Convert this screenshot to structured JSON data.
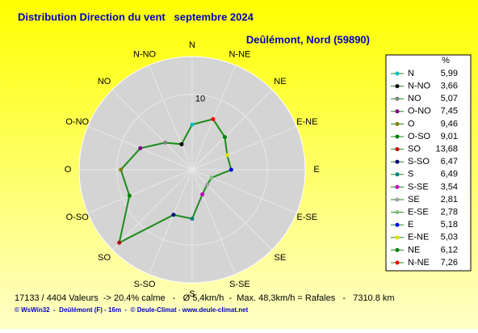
{
  "chart_data": {
    "type": "radar",
    "title": "Distribution Direction du vent   septembre 2024",
    "subtitle": "Deûlémont, Nord (59890)",
    "unit_label": "%",
    "categories": [
      "N",
      "N-NO",
      "NO",
      "O-NO",
      "O",
      "O-SO",
      "SO",
      "S-SO",
      "S",
      "S-SE",
      "SE",
      "E-SE",
      "E",
      "E-NE",
      "NE",
      "N-NE"
    ],
    "values": [
      5.99,
      3.66,
      5.07,
      7.45,
      9.46,
      9.01,
      13.68,
      6.47,
      6.49,
      3.54,
      2.81,
      2.78,
      5.18,
      5.03,
      6.12,
      7.26
    ],
    "value_labels": [
      "5,99",
      "3,66",
      "5,07",
      "7,45",
      "9,46",
      "9,01",
      "13,68",
      "6,47",
      "6,49",
      "3,54",
      "2,81",
      "2,78",
      "5,18",
      "5,03",
      "6,12",
      "7,26"
    ],
    "marker_colors": [
      "#00c0c0",
      "#000000",
      "#808080",
      "#800080",
      "#808000",
      "#008000",
      "#c00000",
      "#000080",
      "#008080",
      "#c000c0",
      "#a0a0a0",
      "#80c080",
      "#0000ff",
      "#e0e000",
      "#008000",
      "#ff0000"
    ],
    "line_color": "#1a8c1a",
    "rlim": [
      0,
      15
    ],
    "rticks": [
      10
    ],
    "footer": "17133 / 4404 Valeurs  -> 20.4% calme   -   Ø 5,4km/h  -  Max. 48,3km/h = Rafales   -   7310.8 km",
    "credits": "© WsWin32  -  Deûlémont (F) - 16m  -  © Deule-Climat - www.deule-climat.net"
  }
}
